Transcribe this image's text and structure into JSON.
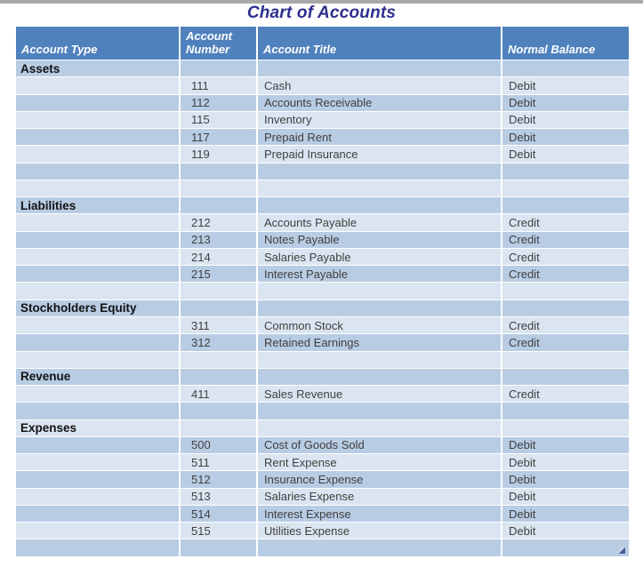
{
  "page": {
    "title": "Chart of Accounts"
  },
  "colors": {
    "header_bg": "#4f81bd",
    "band_dark": "#b8cce4",
    "band_light": "#dbe5f1",
    "title_text": "#2d2f8f",
    "header_text": "#ffffff",
    "body_text": "#3f3f3f",
    "section_text": "#121212",
    "grid_line": "#ffffff",
    "top_strip": "#a8a8a8",
    "page_bg": "#ffffff"
  },
  "icons": {
    "table_resize_handle": "diagonal-resize-grip"
  },
  "table": {
    "columns": [
      "Account Type",
      "Account Number",
      "Account Title",
      "Normal Balance"
    ],
    "rows": [
      {
        "kind": "section",
        "account_type": "Assets",
        "number": "",
        "title": "",
        "balance": ""
      },
      {
        "kind": "account",
        "account_type": "",
        "number": "111",
        "title": "Cash",
        "balance": "Debit"
      },
      {
        "kind": "account",
        "account_type": "",
        "number": "112",
        "title": "Accounts Receivable",
        "balance": "Debit"
      },
      {
        "kind": "account",
        "account_type": "",
        "number": "115",
        "title": "Inventory",
        "balance": "Debit"
      },
      {
        "kind": "account",
        "account_type": "",
        "number": "117",
        "title": "Prepaid Rent",
        "balance": "Debit"
      },
      {
        "kind": "account",
        "account_type": "",
        "number": "119",
        "title": "Prepaid Insurance",
        "balance": "Debit"
      },
      {
        "kind": "empty",
        "account_type": "",
        "number": "",
        "title": "",
        "balance": ""
      },
      {
        "kind": "empty",
        "account_type": "",
        "number": "",
        "title": "",
        "balance": ""
      },
      {
        "kind": "section",
        "account_type": "Liabilities",
        "number": "",
        "title": "",
        "balance": ""
      },
      {
        "kind": "account",
        "account_type": "",
        "number": "212",
        "title": "Accounts Payable",
        "balance": "Credit"
      },
      {
        "kind": "account",
        "account_type": "",
        "number": "213",
        "title": "Notes Payable",
        "balance": "Credit"
      },
      {
        "kind": "account",
        "account_type": "",
        "number": "214",
        "title": "Salaries Payable",
        "balance": "Credit"
      },
      {
        "kind": "account",
        "account_type": "",
        "number": "215",
        "title": "Interest Payable",
        "balance": "Credit"
      },
      {
        "kind": "empty",
        "account_type": "",
        "number": "",
        "title": "",
        "balance": ""
      },
      {
        "kind": "section",
        "account_type": "Stockholders Equity",
        "number": "",
        "title": "",
        "balance": ""
      },
      {
        "kind": "account",
        "account_type": "",
        "number": "311",
        "title": "Common Stock",
        "balance": "Credit"
      },
      {
        "kind": "account",
        "account_type": "",
        "number": "312",
        "title": "Retained Earnings",
        "balance": "Credit"
      },
      {
        "kind": "empty",
        "account_type": "",
        "number": "",
        "title": "",
        "balance": ""
      },
      {
        "kind": "section",
        "account_type": "Revenue",
        "number": "",
        "title": "",
        "balance": ""
      },
      {
        "kind": "account",
        "account_type": "",
        "number": "411",
        "title": "Sales Revenue",
        "balance": "Credit"
      },
      {
        "kind": "empty",
        "account_type": "",
        "number": "",
        "title": "",
        "balance": ""
      },
      {
        "kind": "section",
        "account_type": "Expenses",
        "number": "",
        "title": "",
        "balance": ""
      },
      {
        "kind": "account",
        "account_type": "",
        "number": "500",
        "title": "Cost of Goods Sold",
        "balance": "Debit"
      },
      {
        "kind": "account",
        "account_type": "",
        "number": "511",
        "title": "Rent Expense",
        "balance": "Debit"
      },
      {
        "kind": "account",
        "account_type": "",
        "number": "512",
        "title": "Insurance Expense",
        "balance": "Debit"
      },
      {
        "kind": "account",
        "account_type": "",
        "number": "513",
        "title": "Salaries Expense",
        "balance": "Debit"
      },
      {
        "kind": "account",
        "account_type": "",
        "number": "514",
        "title": "Interest Expense",
        "balance": "Debit"
      },
      {
        "kind": "account",
        "account_type": "",
        "number": "515",
        "title": "Utilities Expense",
        "balance": "Debit"
      },
      {
        "kind": "empty",
        "account_type": "",
        "number": "",
        "title": "",
        "balance": ""
      }
    ]
  }
}
